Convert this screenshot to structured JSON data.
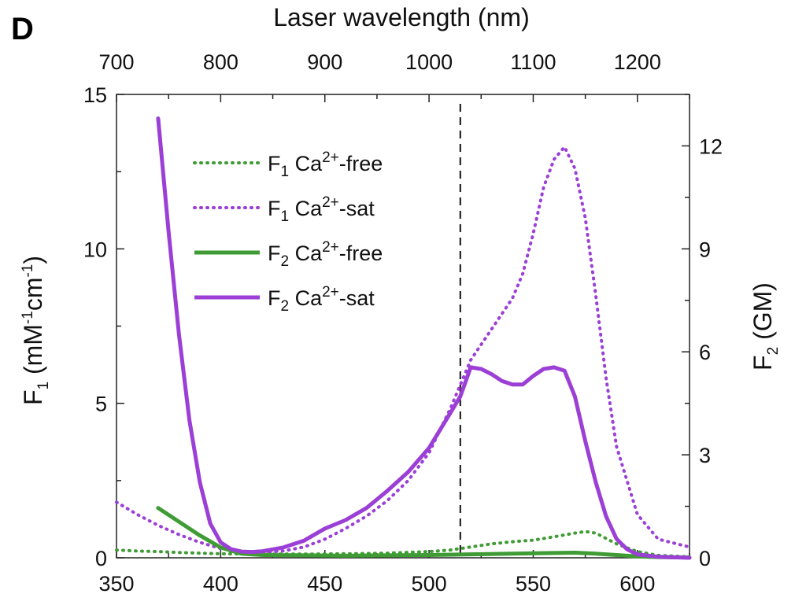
{
  "panel_label": "D",
  "chart_data": {
    "type": "line",
    "x_top": {
      "label": "Laser wavelength (nm)",
      "ticks": [
        "700",
        "800",
        "900",
        "1000",
        "1100",
        "1200"
      ],
      "range": [
        700,
        1250
      ]
    },
    "x_bottom": {
      "ticks": [
        "350",
        "400",
        "450",
        "500",
        "550",
        "600"
      ],
      "range": [
        350,
        625
      ]
    },
    "y_left": {
      "label_main": "F",
      "label_sub": "1",
      "label_rest": " (mM",
      "label_sup1": "-1",
      "label_mid": "cm",
      "label_sup2": "-1",
      "label_end": ")",
      "ticks": [
        "0",
        "5",
        "10",
        "15"
      ],
      "range": [
        0,
        15
      ]
    },
    "y_right": {
      "label_main": "F",
      "label_sub": "2",
      "label_rest": " (GM)",
      "ticks": [
        "0",
        "3",
        "6",
        "9",
        "12"
      ],
      "range": [
        0,
        13.5
      ]
    },
    "vline_x_bottom": 515,
    "legend": [
      {
        "main": "F",
        "sub": "1",
        "ion": " Ca",
        "sup": "2+",
        "state": "-free",
        "color": "#3f9c35",
        "dash": "dot",
        "axis": "left"
      },
      {
        "main": "F",
        "sub": "1",
        "ion": " Ca",
        "sup": "2+",
        "state": "-sat",
        "color": "#9b3fd6",
        "dash": "dot",
        "axis": "left"
      },
      {
        "main": "F",
        "sub": "2",
        "ion": " Ca",
        "sup": "2+",
        "state": "-free",
        "color": "#3f9c35",
        "dash": "solid",
        "axis": "right"
      },
      {
        "main": "F",
        "sub": "2",
        "ion": " Ca",
        "sup": "2+",
        "state": "-sat",
        "color": "#9b3fd6",
        "dash": "solid",
        "axis": "right"
      }
    ],
    "series": [
      {
        "axis": "left",
        "x": [
          350,
          360,
          370,
          380,
          390,
          400,
          420,
          440,
          460,
          480,
          500,
          510,
          520,
          530,
          540,
          550,
          560,
          570,
          575,
          580,
          590,
          600,
          610,
          625
        ],
        "y": [
          0.25,
          0.22,
          0.2,
          0.17,
          0.15,
          0.13,
          0.12,
          0.12,
          0.13,
          0.15,
          0.2,
          0.25,
          0.35,
          0.45,
          0.52,
          0.57,
          0.68,
          0.8,
          0.85,
          0.8,
          0.45,
          0.2,
          0.08,
          0.03
        ]
      },
      {
        "axis": "left",
        "x": [
          350,
          360,
          370,
          380,
          390,
          400,
          410,
          420,
          430,
          440,
          450,
          460,
          470,
          480,
          490,
          500,
          510,
          520,
          530,
          540,
          545,
          550,
          555,
          560,
          565,
          570,
          575,
          580,
          585,
          590,
          600,
          610,
          625
        ],
        "y": [
          1.8,
          1.4,
          1.05,
          0.75,
          0.5,
          0.3,
          0.2,
          0.18,
          0.22,
          0.35,
          0.6,
          0.95,
          1.35,
          1.85,
          2.5,
          3.4,
          4.8,
          6.4,
          7.4,
          8.4,
          9.2,
          10.5,
          12.0,
          12.9,
          13.3,
          12.6,
          11.0,
          8.5,
          5.8,
          3.6,
          1.4,
          0.6,
          0.35
        ]
      },
      {
        "axis": "right",
        "x": [
          370,
          380,
          390,
          400,
          410,
          420,
          440,
          460,
          480,
          500,
          520,
          540,
          560,
          570,
          580,
          590,
          600,
          610,
          625
        ],
        "y": [
          1.45,
          1.05,
          0.65,
          0.3,
          0.12,
          0.08,
          0.07,
          0.06,
          0.07,
          0.08,
          0.1,
          0.12,
          0.14,
          0.15,
          0.12,
          0.08,
          0.04,
          0.02,
          0.01
        ]
      },
      {
        "axis": "right",
        "x": [
          370,
          375,
          380,
          385,
          390,
          395,
          400,
          405,
          410,
          415,
          420,
          430,
          440,
          450,
          460,
          470,
          480,
          490,
          500,
          510,
          515,
          520,
          525,
          530,
          535,
          540,
          545,
          550,
          555,
          560,
          565,
          570,
          575,
          580,
          585,
          590,
          595,
          600,
          610,
          625
        ],
        "y": [
          12.8,
          9.5,
          6.5,
          4.0,
          2.2,
          1.0,
          0.45,
          0.25,
          0.18,
          0.17,
          0.19,
          0.3,
          0.5,
          0.85,
          1.1,
          1.45,
          1.95,
          2.5,
          3.2,
          4.2,
          4.7,
          5.55,
          5.5,
          5.35,
          5.15,
          5.05,
          5.05,
          5.3,
          5.5,
          5.55,
          5.45,
          4.7,
          3.4,
          2.2,
          1.2,
          0.55,
          0.25,
          0.1,
          0.03,
          0.0
        ]
      }
    ]
  }
}
